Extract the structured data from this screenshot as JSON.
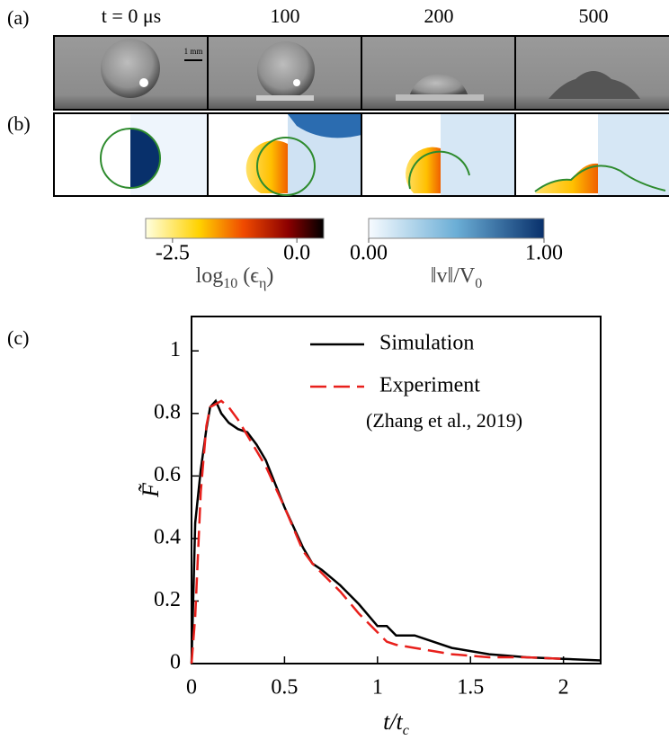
{
  "panel_labels": [
    "(a)",
    "(b)",
    "(c)"
  ],
  "time_labels": [
    "t = 0 μs",
    "100",
    "200",
    "500"
  ],
  "scale_bar": "1 mm",
  "colorbars": [
    {
      "label": [
        {
          "text": "log"
        },
        {
          "text": "10",
          "sub": true
        },
        {
          "text": " (ϵ"
        },
        {
          "text": "η",
          "sub": true
        },
        {
          "text": ")"
        }
      ],
      "lim": [
        -3.04,
        0.54
      ],
      "ticks": [
        -2.5,
        {
          "value": 0,
          "label": "0.0"
        }
      ]
    },
    {
      "label": [
        {
          "text": "‖v‖/V"
        },
        {
          "text": "0",
          "sub": true
        }
      ],
      "lim": [
        0,
        1
      ],
      "ticks": [
        {
          "value": 0,
          "label": "0.00"
        },
        {
          "value": 1,
          "label": "1.00"
        }
      ]
    }
  ],
  "chart_data": {
    "type": "line",
    "x_label": [
      {
        "text": "t/t"
      },
      {
        "text": "c",
        "sub": true
      }
    ],
    "y_label": "F̃",
    "annotation": "(Zhang et al., 2019)",
    "x": [
      0,
      0.02,
      0.05,
      0.08,
      0.1,
      0.13,
      0.16,
      0.2,
      0.25,
      0.3,
      0.35,
      0.4,
      0.5,
      0.6,
      0.65,
      0.7,
      0.8,
      0.9,
      1.0,
      1.05,
      1.1,
      1.2,
      1.3,
      1.4,
      1.5,
      1.6,
      1.7,
      1.8,
      2.0,
      2.2
    ],
    "series": [
      {
        "name": "Simulation",
        "color": "#000000",
        "dash": false,
        "values": [
          0,
          0.45,
          0.62,
          0.75,
          0.82,
          0.84,
          0.8,
          0.77,
          0.75,
          0.74,
          0.7,
          0.65,
          0.5,
          0.37,
          0.32,
          0.3,
          0.25,
          0.19,
          0.12,
          0.12,
          0.09,
          0.09,
          0.07,
          0.05,
          0.04,
          0.03,
          0.025,
          0.02,
          0.015,
          0.01
        ]
      },
      {
        "name": "Experiment",
        "color": "#e8201c",
        "dash": true,
        "values": [
          0,
          0.15,
          0.55,
          0.76,
          0.82,
          0.83,
          0.84,
          0.82,
          0.78,
          0.73,
          0.68,
          0.63,
          0.5,
          0.36,
          0.32,
          0.29,
          0.23,
          0.16,
          0.1,
          0.07,
          0.06,
          0.05,
          0.04,
          0.03,
          0.025,
          0.02,
          0.02,
          0.02,
          0.015,
          null
        ]
      }
    ],
    "xlim": [
      0,
      2.2
    ],
    "ylim": [
      0,
      1.11
    ],
    "xticks": [
      0,
      0.5,
      1,
      1.5,
      2
    ],
    "yticks": [
      0,
      0.2,
      0.4,
      0.6,
      0.8,
      1
    ]
  }
}
